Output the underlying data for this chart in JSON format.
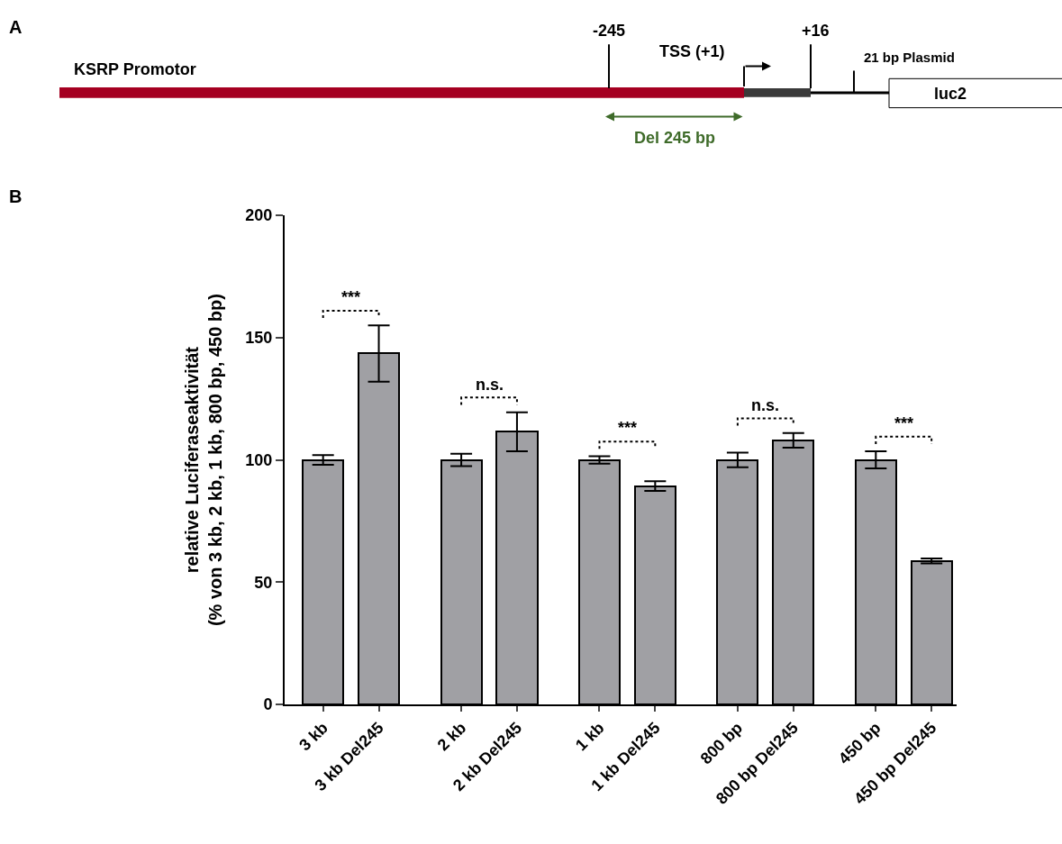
{
  "chart_data": {
    "type": "bar",
    "title": "B",
    "ylabel": "relative Luciferaseaktivität\n(% von 3 kb, 2 kb, 1 kb, 800 bp, 450 bp)",
    "categories": [
      "3 kb",
      "3 kb Del245",
      "2 kb",
      "2 kb Del245",
      "1 kb",
      "1 kb Del245",
      "800 bp",
      "800 bp Del245",
      "450 bp",
      "450 bp Del245"
    ],
    "values": [
      100,
      143.5,
      100,
      111.5,
      100,
      89.3,
      100,
      108,
      100,
      58.7
    ],
    "errors": [
      2,
      11.5,
      2.5,
      8,
      1.5,
      2,
      3,
      3,
      3.5,
      1
    ],
    "color": "#a0a0a4",
    "ylim": [
      0,
      200
    ],
    "yticks": [
      0,
      50,
      100,
      150,
      200
    ],
    "annotations": [
      "A",
      "KSRP Promotor",
      "-245",
      "TSS (+1)",
      "+16",
      "21 bp Plasmid",
      "luc2",
      "Del 245 bp",
      "***",
      "n.s.",
      "***",
      "n.s.",
      "***"
    ]
  }
}
